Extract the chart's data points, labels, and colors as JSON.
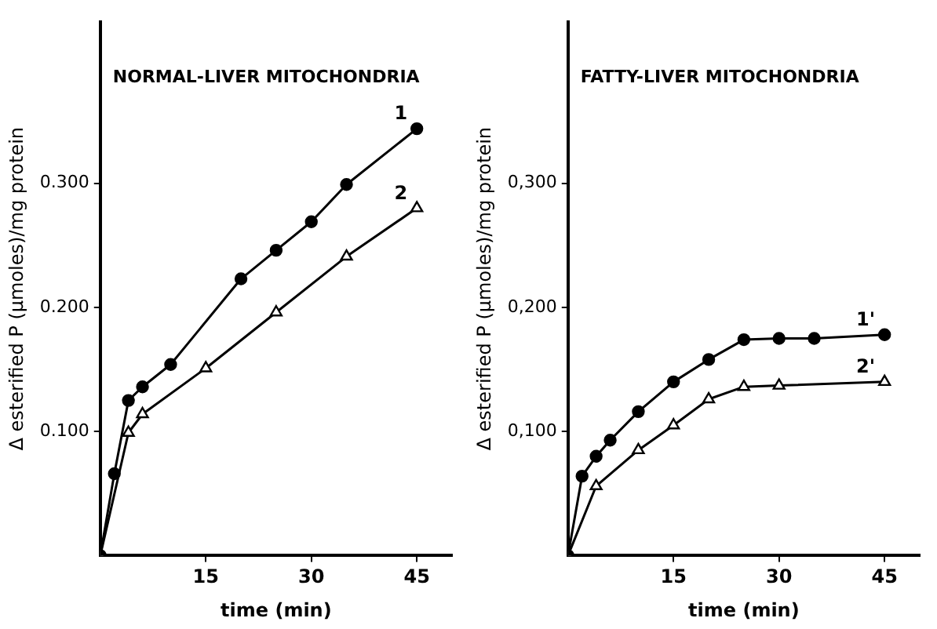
{
  "chart_data": [
    {
      "type": "line",
      "title": "NORMAL-LIVER MITOCHONDRIA",
      "xlabel": "time (min)",
      "ylabel": "Δ esterified P (μmoles)/mg protein",
      "xlim": [
        0,
        50
      ],
      "ylim": [
        0,
        0.43
      ],
      "xticks": [
        15,
        30,
        45
      ],
      "yticks": [
        {
          "value": 0.1,
          "label": "0.100"
        },
        {
          "value": 0.2,
          "label": "0.200"
        },
        {
          "value": 0.3,
          "label": "0.300"
        }
      ],
      "grid": false,
      "legend": false,
      "line_style": "solid",
      "series": [
        {
          "name": "1",
          "color": "#000000",
          "marker": "circle",
          "x": [
            0,
            2,
            4,
            6,
            10,
            20,
            25,
            30,
            35,
            45
          ],
          "values": [
            0,
            0.066,
            0.125,
            0.136,
            0.154,
            0.223,
            0.246,
            0.269,
            0.299,
            0.344
          ]
        },
        {
          "name": "2",
          "color": "#000000",
          "marker": "triangle",
          "x": [
            0,
            4,
            6,
            15,
            25,
            35,
            45
          ],
          "values": [
            0,
            0.099,
            0.114,
            0.151,
            0.196,
            0.241,
            0.28
          ]
        }
      ]
    },
    {
      "type": "line",
      "title": "FATTY-LIVER MITOCHONDRIA",
      "xlabel": "time (min)",
      "ylabel": "Δ esterified P (μmoles)/mg protein",
      "xlim": [
        0,
        50
      ],
      "ylim": [
        0,
        0.43
      ],
      "xticks": [
        15,
        30,
        45
      ],
      "yticks": [
        {
          "value": 0.1,
          "label": "0,100"
        },
        {
          "value": 0.2,
          "label": "0,200"
        },
        {
          "value": 0.3,
          "label": "0,300"
        }
      ],
      "grid": false,
      "legend": false,
      "line_style": "solid",
      "series": [
        {
          "name": "1'",
          "color": "#000000",
          "marker": "circle",
          "x": [
            0,
            2,
            4,
            6,
            10,
            15,
            20,
            25,
            30,
            35,
            45
          ],
          "values": [
            0,
            0.064,
            0.08,
            0.093,
            0.116,
            0.14,
            0.158,
            0.174,
            0.175,
            0.175,
            0.178
          ]
        },
        {
          "name": "2'",
          "color": "#000000",
          "marker": "triangle",
          "x": [
            0,
            4,
            10,
            15,
            20,
            25,
            30,
            45
          ],
          "values": [
            0,
            0.056,
            0.085,
            0.105,
            0.126,
            0.136,
            0.137,
            0.14
          ]
        }
      ]
    }
  ]
}
